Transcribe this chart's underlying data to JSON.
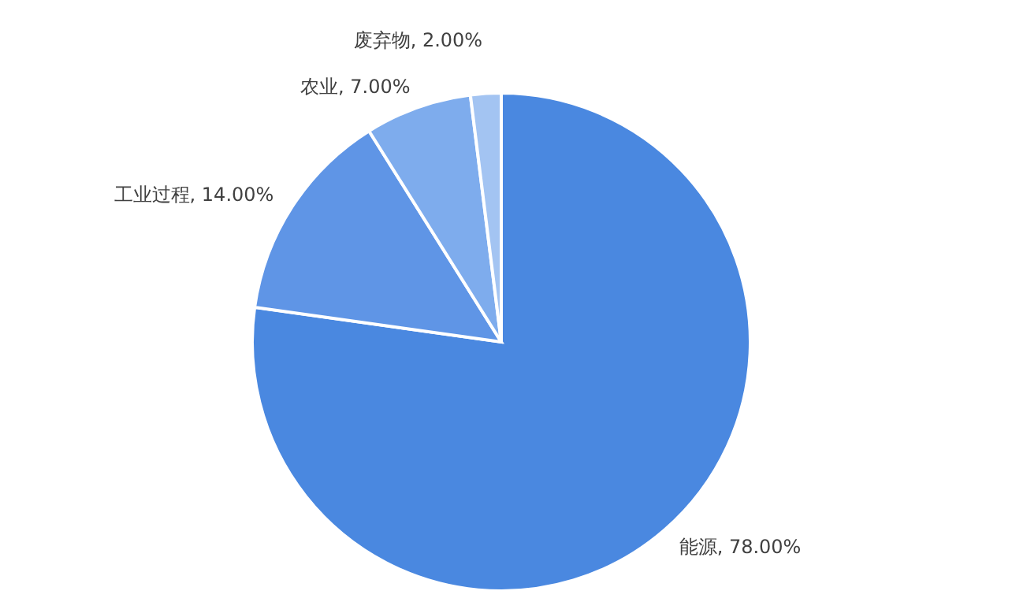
{
  "chart_data": {
    "type": "pie",
    "categories": [
      "能源",
      "工业过程",
      "农业",
      "废弃物"
    ],
    "values": [
      78,
      14,
      7,
      2
    ],
    "value_labels": [
      "78.00%",
      "14.00%",
      "7.00%",
      "2.00%"
    ],
    "colors": [
      "#4a88e0",
      "#5f95e6",
      "#7eaced",
      "#a3c4f2"
    ]
  }
}
